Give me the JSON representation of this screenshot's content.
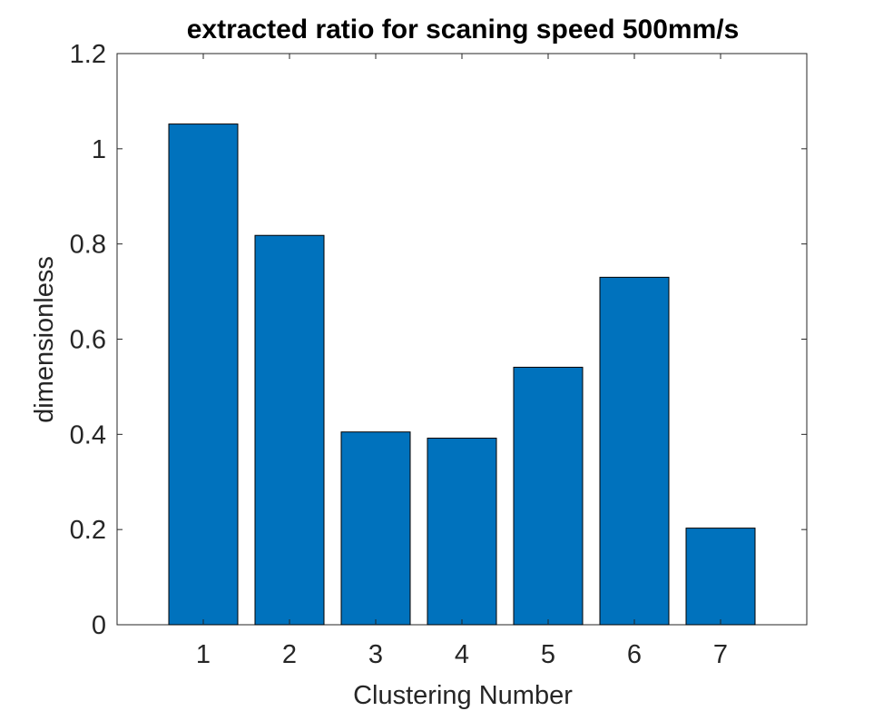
{
  "chart_data": {
    "type": "bar",
    "title": "extracted ratio for scaning speed 500mm/s",
    "xlabel": "Clustering Number",
    "ylabel": "dimensionless",
    "categories": [
      "1",
      "2",
      "3",
      "4",
      "5",
      "6",
      "7"
    ],
    "values": [
      1.052,
      0.818,
      0.405,
      0.392,
      0.541,
      0.73,
      0.203
    ],
    "ylim": [
      0,
      1.2
    ],
    "yticks": [
      "0",
      "0.2",
      "0.4",
      "0.6",
      "0.8",
      "1",
      "1.2"
    ],
    "grid": false,
    "bar_color": "#0072BD",
    "bar_edge_color": "#000000",
    "axis_color": "#262626"
  }
}
